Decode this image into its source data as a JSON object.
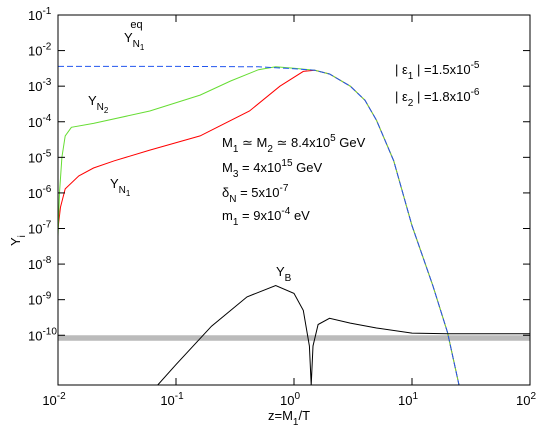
{
  "chart_data": {
    "type": "line",
    "log_x": true,
    "log_y": true,
    "xlim": [
      0.01,
      100
    ],
    "ylim": [
      4e-12,
      0.1
    ],
    "xticks": [
      {
        "value": 0.01,
        "label": "10",
        "exponent": "-2"
      },
      {
        "value": 0.1,
        "label": "10",
        "exponent": "-1"
      },
      {
        "value": 1,
        "label": "10",
        "exponent": "0"
      },
      {
        "value": 10,
        "label": "10",
        "exponent": "1"
      },
      {
        "value": 100,
        "label": "10",
        "exponent": "2"
      }
    ],
    "yticks": [
      {
        "value": 1e-10,
        "label": "10",
        "exponent": "-10"
      },
      {
        "value": 1e-09,
        "label": "10",
        "exponent": "-9"
      },
      {
        "value": 1e-08,
        "label": "10",
        "exponent": "-8"
      },
      {
        "value": 1e-07,
        "label": "10",
        "exponent": "-7"
      },
      {
        "value": 1e-06,
        "label": "10",
        "exponent": "-6"
      },
      {
        "value": 1e-05,
        "label": "10",
        "exponent": "-5"
      },
      {
        "value": 0.0001,
        "label": "10",
        "exponent": "-4"
      },
      {
        "value": 0.001,
        "label": "10",
        "exponent": "-3"
      },
      {
        "value": 0.01,
        "label": "10",
        "exponent": "-2"
      },
      {
        "value": 0.1,
        "label": "10",
        "exponent": "-1"
      }
    ],
    "x_label": [
      [
        "z=M",
        ""
      ],
      [
        "1",
        "sub"
      ],
      [
        "/T",
        ""
      ]
    ],
    "y_label": [
      [
        "Y",
        ""
      ],
      [
        "i",
        "sub"
      ]
    ],
    "band": [
      7e-11,
      1e-10
    ],
    "band_color": "#bbbbbb",
    "series": [
      {
        "color": "#ff0000",
        "dash": false,
        "x": [
          0.01,
          0.0105,
          0.0115,
          0.015,
          0.02,
          0.03,
          0.06,
          0.16,
          0.42,
          0.76,
          1.2,
          1.5,
          2,
          3,
          4,
          5,
          7,
          10,
          15,
          20,
          25
        ],
        "values": [
          1e-07,
          4e-07,
          1.3e-06,
          3e-06,
          5e-06,
          8e-06,
          1.6e-05,
          4e-05,
          0.0002,
          0.001,
          0.0026,
          0.0028,
          0.0022,
          0.001,
          0.0004,
          0.00011,
          8e-06,
          1.2e-07,
          2.5e-09,
          1.2e-10,
          4e-12
        ]
      },
      {
        "color": "#66dd33",
        "dash": false,
        "x": [
          0.01,
          0.0103,
          0.0108,
          0.0115,
          0.013,
          0.02,
          0.06,
          0.16,
          0.29,
          0.5,
          0.7,
          1,
          1.5,
          2,
          3,
          4,
          5,
          7,
          10,
          15,
          20,
          25
        ],
        "values": [
          6e-08,
          1e-06,
          1e-05,
          4e-05,
          7e-05,
          9e-05,
          0.0002,
          0.00056,
          0.0014,
          0.0029,
          0.0035,
          0.0032,
          0.0028,
          0.0022,
          0.001,
          0.0004,
          0.00011,
          8e-06,
          1.2e-07,
          2.5e-09,
          1.2e-10,
          4e-12
        ]
      },
      {
        "color": "#2255ee",
        "dash": true,
        "x": [
          0.01,
          0.1,
          0.5,
          1,
          1.5,
          2,
          3,
          4,
          5,
          7,
          10,
          15,
          20,
          25
        ],
        "values": [
          0.0036,
          0.0036,
          0.0035,
          0.0031,
          0.0028,
          0.0022,
          0.001,
          0.0004,
          0.00011,
          8e-06,
          1.2e-07,
          2.5e-09,
          1.2e-10,
          4e-12
        ]
      },
      {
        "color": "#000000",
        "dash": false,
        "x": [
          0.07,
          0.1,
          0.2,
          0.4,
          0.7,
          1,
          1.2,
          1.35,
          1.4,
          1.45,
          1.6,
          2,
          3,
          5,
          10,
          20,
          100
        ],
        "values": [
          4e-12,
          1.5e-11,
          1.8e-10,
          1.2e-09,
          2.5e-09,
          1.5e-09,
          5e-10,
          5e-11,
          4e-12,
          5e-11,
          2e-10,
          3e-10,
          2.2e-10,
          1.6e-10,
          1.15e-10,
          1.1e-10,
          1.1e-10
        ]
      }
    ],
    "annotations": [
      [
        [
          "Y",
          ""
        ],
        [
          "N",
          "sub"
        ],
        [
          "1",
          "subsub"
        ],
        [
          "eq",
          "sup2"
        ]
      ],
      [
        [
          "Y",
          ""
        ],
        [
          "N",
          "sub"
        ],
        [
          "2",
          "subsub"
        ]
      ],
      [
        [
          "Y",
          ""
        ],
        [
          "N",
          "sub"
        ],
        [
          "1",
          "subsub"
        ]
      ],
      [
        [
          "Y",
          ""
        ],
        [
          "B",
          "sub"
        ]
      ],
      [
        [
          "| ε",
          ""
        ],
        [
          "1",
          "sub"
        ],
        [
          " | =1.5x10",
          ""
        ],
        [
          "-5",
          "sup"
        ]
      ],
      [
        [
          "| ε",
          ""
        ],
        [
          "2",
          "sub"
        ],
        [
          " | =1.8x10",
          ""
        ],
        [
          "-6",
          "sup"
        ]
      ],
      [
        [
          "M",
          ""
        ],
        [
          "1",
          "sub"
        ],
        [
          " ≃ M",
          ""
        ],
        [
          "2",
          "sub"
        ],
        [
          " ≃ 8.4x10",
          ""
        ],
        [
          "5",
          "sup"
        ],
        [
          " GeV",
          ""
        ]
      ],
      [
        [
          "M",
          ""
        ],
        [
          "3",
          "sub"
        ],
        [
          " = 4x10",
          ""
        ],
        [
          "15",
          "sup"
        ],
        [
          "  GeV",
          ""
        ]
      ],
      [
        [
          "δ",
          ""
        ],
        [
          "N",
          "sub"
        ],
        [
          " = 5x10",
          ""
        ],
        [
          "-7",
          "sup"
        ]
      ],
      [
        [
          "m",
          ""
        ],
        [
          "1",
          "sub"
        ],
        [
          " = 9x10",
          ""
        ],
        [
          "-4",
          "sup"
        ],
        [
          " eV",
          ""
        ]
      ]
    ]
  }
}
